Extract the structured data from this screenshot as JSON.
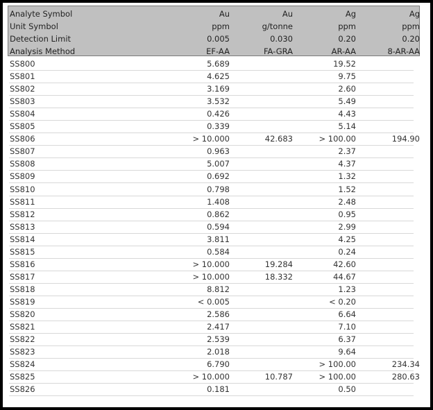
{
  "header_rows": [
    {
      "label": "Analyte Symbol",
      "values": [
        "Au",
        "Au",
        "Ag",
        "Ag"
      ]
    },
    {
      "label": "Unit Symbol",
      "values": [
        "ppm",
        "g/tonne",
        "ppm",
        "ppm"
      ]
    },
    {
      "label": "Detection Limit",
      "values": [
        "0.005",
        "0.030",
        "0.20",
        "0.20"
      ]
    },
    {
      "label": "Analysis Method",
      "values": [
        "EF-AA",
        "FA-GRA",
        "AR-AA",
        "8-AR-AA"
      ]
    }
  ],
  "rows": [
    {
      "sample": "SS800",
      "values": [
        "5.689",
        "",
        "19.52",
        ""
      ]
    },
    {
      "sample": "SS801",
      "values": [
        "4.625",
        "",
        "9.75",
        ""
      ]
    },
    {
      "sample": "SS802",
      "values": [
        "3.169",
        "",
        "2.60",
        ""
      ]
    },
    {
      "sample": "SS803",
      "values": [
        "3.532",
        "",
        "5.49",
        ""
      ]
    },
    {
      "sample": "SS804",
      "values": [
        "0.426",
        "",
        "4.43",
        ""
      ]
    },
    {
      "sample": "SS805",
      "values": [
        "0.339",
        "",
        "5.14",
        ""
      ]
    },
    {
      "sample": "SS806",
      "values": [
        "> 10.000",
        "42.683",
        "> 100.00",
        "194.90"
      ]
    },
    {
      "sample": "SS807",
      "values": [
        "0.963",
        "",
        "2.37",
        ""
      ]
    },
    {
      "sample": "SS808",
      "values": [
        "5.007",
        "",
        "4.37",
        ""
      ]
    },
    {
      "sample": "SS809",
      "values": [
        "0.692",
        "",
        "1.32",
        ""
      ]
    },
    {
      "sample": "SS810",
      "values": [
        "0.798",
        "",
        "1.52",
        ""
      ]
    },
    {
      "sample": "SS811",
      "values": [
        "1.408",
        "",
        "2.48",
        ""
      ]
    },
    {
      "sample": "SS812",
      "values": [
        "0.862",
        "",
        "0.95",
        ""
      ]
    },
    {
      "sample": "SS813",
      "values": [
        "0.594",
        "",
        "2.99",
        ""
      ]
    },
    {
      "sample": "SS814",
      "values": [
        "3.811",
        "",
        "4.25",
        ""
      ]
    },
    {
      "sample": "SS815",
      "values": [
        "0.584",
        "",
        "0.24",
        ""
      ]
    },
    {
      "sample": "SS816",
      "values": [
        "> 10.000",
        "19.284",
        "42.60",
        ""
      ]
    },
    {
      "sample": "SS817",
      "values": [
        "> 10.000",
        "18.332",
        "44.67",
        ""
      ]
    },
    {
      "sample": "SS818",
      "values": [
        "8.812",
        "",
        "1.23",
        ""
      ]
    },
    {
      "sample": "SS819",
      "values": [
        "< 0.005",
        "",
        "< 0.20",
        ""
      ]
    },
    {
      "sample": "SS820",
      "values": [
        "2.586",
        "",
        "6.64",
        ""
      ]
    },
    {
      "sample": "SS821",
      "values": [
        "2.417",
        "",
        "7.10",
        ""
      ]
    },
    {
      "sample": "SS822",
      "values": [
        "2.539",
        "",
        "6.37",
        ""
      ]
    },
    {
      "sample": "SS823",
      "values": [
        "2.018",
        "",
        "9.64",
        ""
      ]
    },
    {
      "sample": "SS824",
      "values": [
        "6.790",
        "",
        "> 100.00",
        "234.34"
      ]
    },
    {
      "sample": "SS825",
      "values": [
        "> 10.000",
        "10.787",
        "> 100.00",
        "280.63"
      ]
    },
    {
      "sample": "SS826",
      "values": [
        "0.181",
        "",
        "0.50",
        ""
      ]
    }
  ]
}
